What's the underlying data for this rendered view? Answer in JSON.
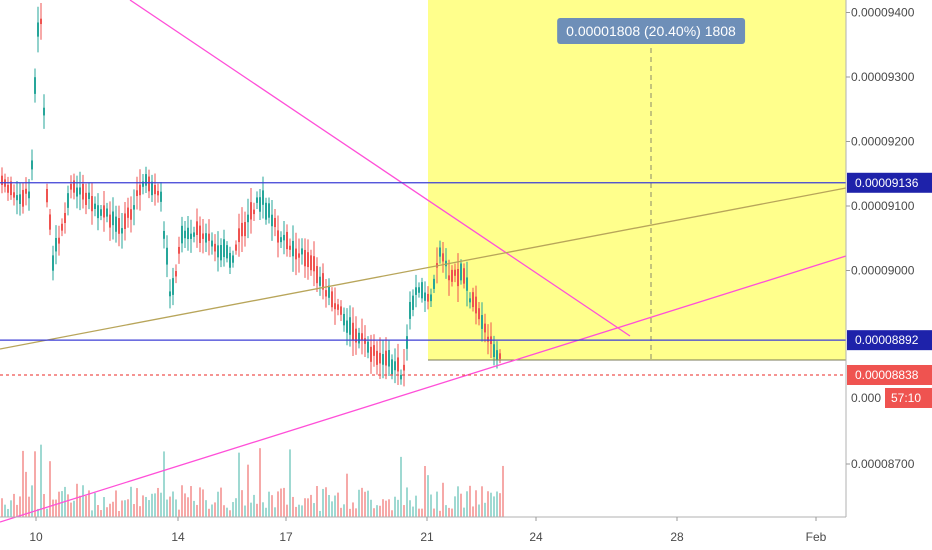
{
  "chart_data": {
    "type": "candlestick",
    "x_ticks": [
      "10",
      "14",
      "17",
      "21",
      "24",
      "28",
      "Feb"
    ],
    "y_ticks": [
      "0.00009400",
      "0.00009300",
      "0.00009200",
      "0.00009100",
      "0.00009000",
      "0.00008700"
    ],
    "ylim": [
      8.62e-05,
      9.42e-05
    ],
    "grid": false,
    "horizontal_levels": [
      {
        "price": "0.00009136",
        "value": 9.136e-05,
        "color": "#3d3fd6"
      },
      {
        "price": "0.00008892",
        "value": 8.892e-05,
        "color": "#3d3fd6"
      }
    ],
    "last_price": {
      "label": "0.00008838",
      "value": 8.838e-05,
      "color": "#ef5350"
    },
    "countdown": {
      "partial_price": "0.000",
      "time": "57:10"
    },
    "measurement": {
      "label": "0.00001808 (20.40%) 1808",
      "box_color": "#ffff66"
    },
    "colors": {
      "up": "#26a69a",
      "down": "#ef5350",
      "trend_pink": "#ff4fd8",
      "trend_olive": "#b8a55a"
    }
  }
}
